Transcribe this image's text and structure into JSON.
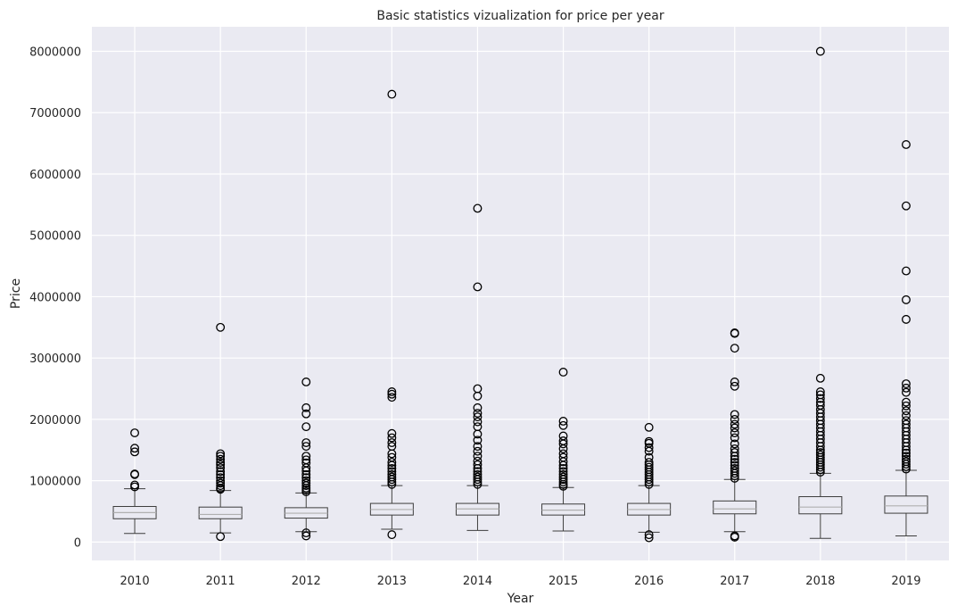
{
  "chart_data": {
    "type": "box",
    "title": "Basic statistics vizualization for price per year",
    "xlabel": "Year",
    "ylabel": "Price",
    "ylim": [
      -300000,
      8400000
    ],
    "yticks": [
      0,
      1000000,
      2000000,
      3000000,
      4000000,
      5000000,
      6000000,
      7000000,
      8000000
    ],
    "grid": true,
    "categories": [
      "2010",
      "2011",
      "2012",
      "2013",
      "2014",
      "2015",
      "2016",
      "2017",
      "2018",
      "2019"
    ],
    "boxes": [
      {
        "whisker_low": 140000,
        "q1": 380000,
        "median": 480000,
        "q3": 580000,
        "whisker_high": 870000,
        "outliers": [
          900000,
          930000,
          1100000,
          1110000,
          1470000,
          1530000,
          1780000
        ]
      },
      {
        "whisker_low": 150000,
        "q1": 380000,
        "median": 450000,
        "q3": 570000,
        "whisker_high": 840000,
        "outliers": [
          90000,
          860000,
          880000,
          920000,
          960000,
          1000000,
          1050000,
          1100000,
          1150000,
          1210000,
          1260000,
          1300000,
          1350000,
          1400000,
          1440000,
          3500000
        ]
      },
      {
        "whisker_low": 170000,
        "q1": 390000,
        "median": 470000,
        "q3": 560000,
        "whisker_high": 800000,
        "outliers": [
          100000,
          150000,
          820000,
          850000,
          880000,
          920000,
          960000,
          1000000,
          1050000,
          1100000,
          1160000,
          1210000,
          1290000,
          1340000,
          1400000,
          1560000,
          1620000,
          1880000,
          2090000,
          2190000,
          2610000
        ]
      },
      {
        "whisker_low": 210000,
        "q1": 440000,
        "median": 530000,
        "q3": 630000,
        "whisker_high": 920000,
        "outliers": [
          120000,
          940000,
          980000,
          1020000,
          1060000,
          1100000,
          1150000,
          1200000,
          1250000,
          1300000,
          1380000,
          1440000,
          1560000,
          1620000,
          1700000,
          1770000,
          2360000,
          2410000,
          2450000,
          7300000
        ]
      },
      {
        "whisker_low": 190000,
        "q1": 440000,
        "median": 540000,
        "q3": 630000,
        "whisker_high": 920000,
        "outliers": [
          940000,
          980000,
          1020000,
          1060000,
          1100000,
          1150000,
          1200000,
          1260000,
          1320000,
          1400000,
          1480000,
          1560000,
          1660000,
          1760000,
          1880000,
          1960000,
          2040000,
          2100000,
          2190000,
          2380000,
          2500000,
          4160000,
          5440000
        ]
      },
      {
        "whisker_low": 180000,
        "q1": 440000,
        "median": 520000,
        "q3": 620000,
        "whisker_high": 890000,
        "outliers": [
          910000,
          940000,
          980000,
          1020000,
          1060000,
          1100000,
          1150000,
          1200000,
          1250000,
          1310000,
          1380000,
          1440000,
          1520000,
          1600000,
          1650000,
          1730000,
          1900000,
          1970000,
          2770000
        ]
      },
      {
        "whisker_low": 160000,
        "q1": 440000,
        "median": 530000,
        "q3": 630000,
        "whisker_high": 920000,
        "outliers": [
          70000,
          120000,
          940000,
          980000,
          1020000,
          1060000,
          1100000,
          1140000,
          1180000,
          1220000,
          1260000,
          1300000,
          1380000,
          1480000,
          1540000,
          1610000,
          1640000,
          1870000
        ]
      },
      {
        "whisker_low": 170000,
        "q1": 460000,
        "median": 540000,
        "q3": 670000,
        "whisker_high": 1020000,
        "outliers": [
          80000,
          100000,
          1040000,
          1080000,
          1120000,
          1160000,
          1200000,
          1250000,
          1300000,
          1350000,
          1400000,
          1460000,
          1520000,
          1600000,
          1700000,
          1780000,
          1860000,
          1920000,
          2000000,
          2080000,
          2540000,
          2610000,
          3160000,
          3400000,
          3410000
        ]
      },
      {
        "whisker_low": 60000,
        "q1": 460000,
        "median": 570000,
        "q3": 740000,
        "whisker_high": 1120000,
        "outliers": [
          1140000,
          1180000,
          1220000,
          1260000,
          1300000,
          1340000,
          1380000,
          1420000,
          1460000,
          1500000,
          1560000,
          1620000,
          1680000,
          1740000,
          1800000,
          1860000,
          1920000,
          1980000,
          2040000,
          2100000,
          2160000,
          2230000,
          2280000,
          2340000,
          2400000,
          2450000,
          2670000,
          8000000
        ]
      },
      {
        "whisker_low": 100000,
        "q1": 470000,
        "median": 590000,
        "q3": 750000,
        "whisker_high": 1170000,
        "outliers": [
          1190000,
          1230000,
          1270000,
          1310000,
          1350000,
          1400000,
          1450000,
          1500000,
          1560000,
          1620000,
          1680000,
          1740000,
          1800000,
          1860000,
          1920000,
          1980000,
          2060000,
          2140000,
          2220000,
          2280000,
          2440000,
          2510000,
          2580000,
          3630000,
          3950000,
          4420000,
          5480000,
          6480000
        ]
      }
    ]
  }
}
